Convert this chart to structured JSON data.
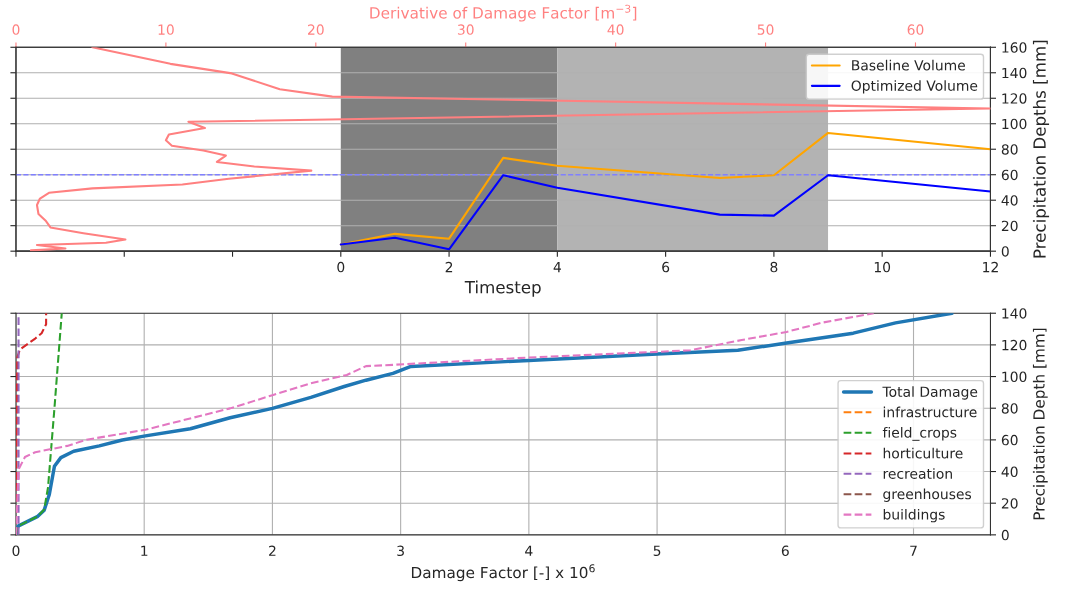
{
  "chart_data": [
    {
      "type": "line",
      "xlabel": "Timestep",
      "ylabel": "Precipitation Depths [mm]",
      "x2label": "Derivative of Damage Factor [m$^{−3}$]",
      "x": [
        0,
        1,
        2,
        3,
        4,
        7,
        8,
        9,
        12
      ],
      "xlim": [
        -6,
        12
      ],
      "xticks": [
        {
          "value": -6,
          "label": null
        },
        {
          "value": -4,
          "label": null
        },
        {
          "value": -2,
          "label": null
        },
        0,
        2,
        4,
        6,
        8,
        10,
        12
      ],
      "x2lim": [
        0,
        65
      ],
      "x2ticks": [
        0,
        10,
        20,
        30,
        40,
        50,
        60
      ],
      "ylim": [
        0,
        160
      ],
      "yticks": [
        0,
        20,
        40,
        60,
        80,
        100,
        120,
        140,
        160
      ],
      "grid": "y",
      "legend": "top right",
      "bands": [
        {
          "axis": "x",
          "from": 0,
          "to": 4,
          "color": "#808080"
        },
        {
          "axis": "x",
          "from": 4,
          "to": 9,
          "color": "#b3b3b3"
        }
      ],
      "ref_lines": [
        {
          "axis": "y",
          "value": 60,
          "color": "#8080ff",
          "line_style": "dashed"
        }
      ],
      "series": [
        {
          "name": "Baseline Volume",
          "color": "#ffa500",
          "values": [
            5.3,
            13.6,
            9.8,
            73.2,
            67,
            57.4,
            59.6,
            92.8,
            80
          ]
        },
        {
          "name": "Optimized Volume",
          "color": "#0000ff",
          "values": [
            5.3,
            10.6,
            1.5,
            59.6,
            49.8,
            28.7,
            27.9,
            59.6,
            46.8
          ]
        },
        {
          "color": "#ff8080",
          "axis": "x2",
          "x": [
            5.1,
            10.3,
            14.4,
            17.6,
            21.1,
            65,
            11.5,
            12.6,
            10.2,
            10.0,
            10.4,
            12.5,
            14.0,
            13.4,
            15.9,
            19.7,
            14.2,
            11.1,
            5.1,
            2.2,
            1.6,
            1.4,
            1.5,
            2.0,
            2.3,
            4.5,
            7.3,
            6.0,
            1.4,
            2.2,
            3.3,
            1.0
          ],
          "values": [
            160,
            147,
            139.5,
            127,
            121.3,
            112,
            101.5,
            96.6,
            91.5,
            87,
            82.8,
            79,
            75,
            70,
            66.4,
            63.2,
            56.8,
            52.3,
            49.3,
            45.8,
            41.3,
            36.2,
            29.2,
            23.6,
            18.6,
            14.1,
            9.1,
            6.6,
            4.8,
            3.6,
            2.1,
            0.6
          ]
        }
      ]
    },
    {
      "type": "line",
      "xlabel": "Damage Factor [-] x 10$^{6}$",
      "ylabel": "Precipitation Depth [mm]",
      "xlim": [
        0,
        7.6
      ],
      "xticks": [
        0,
        1,
        2,
        3,
        4,
        5,
        6,
        7
      ],
      "ylim": [
        0,
        140
      ],
      "yticks": [
        0,
        20,
        40,
        60,
        80,
        100,
        120,
        140
      ],
      "grid": true,
      "legend": "bottom right",
      "series": [
        {
          "name": "Total Damage",
          "color": "#1f77b4",
          "line_style": "solid",
          "x": [
            0,
            0.008,
            0.02,
            0.17,
            0.22,
            0.26,
            0.3,
            0.35,
            0.45,
            0.65,
            0.83,
            1.01,
            1.36,
            1.67,
            2.0,
            2.3,
            2.56,
            2.73,
            2.94,
            3.08,
            4.0,
            5.0,
            5.63,
            6.01,
            6.53,
            6.86,
            7.3
          ],
          "values": [
            0,
            3.7,
            5.7,
            11.7,
            15.6,
            25.5,
            43.3,
            48.8,
            52.8,
            56.2,
            59.9,
            62.5,
            67,
            74,
            79.9,
            86.8,
            93.7,
            97.7,
            102,
            106.4,
            110.2,
            114.3,
            116.6,
            121.2,
            127.4,
            133.9,
            140
          ]
        },
        {
          "name": "infrastructure",
          "color": "#ff7f0e",
          "line_style": "dashed"
        },
        {
          "name": "field_crops",
          "color": "#2ca02c",
          "line_style": "dashed",
          "x": [
            0,
            0.02,
            0.17,
            0.22,
            0.25,
            0.3,
            0.357
          ],
          "values": [
            0,
            5.7,
            11.7,
            16,
            30,
            80,
            140
          ]
        },
        {
          "name": "horticulture",
          "color": "#d62728",
          "line_style": "dashed",
          "x": [
            0,
            0.005,
            0.01,
            0.03,
            0.15,
            0.2,
            0.235,
            0.235
          ],
          "values": [
            0,
            60,
            112,
            117,
            124,
            127.4,
            133,
            140
          ]
        },
        {
          "name": "recreation",
          "color": "#9467bd",
          "line_style": "dashed",
          "x": [
            0.02,
            0.02
          ],
          "values": [
            0,
            140
          ]
        },
        {
          "name": "greenhouses",
          "color": "#8c564b",
          "line_style": "dashed"
        },
        {
          "name": "buildings",
          "color": "#e377c2",
          "line_style": "dashed",
          "x": [
            0,
            0.01,
            0.02,
            0.07,
            0.15,
            0.4,
            0.55,
            1.01,
            1.67,
            2.0,
            2.3,
            2.58,
            2.73,
            2.94,
            4.0,
            5.0,
            5.26,
            5.66,
            6.01,
            6.29,
            6.69
          ],
          "values": [
            0,
            20,
            41.3,
            49.2,
            52.2,
            56.2,
            60.1,
            66.4,
            79.9,
            88.2,
            95.7,
            101,
            106.6,
            107.4,
            112,
            115.6,
            116.6,
            123.1,
            128.2,
            134.1,
            140
          ]
        }
      ]
    }
  ]
}
